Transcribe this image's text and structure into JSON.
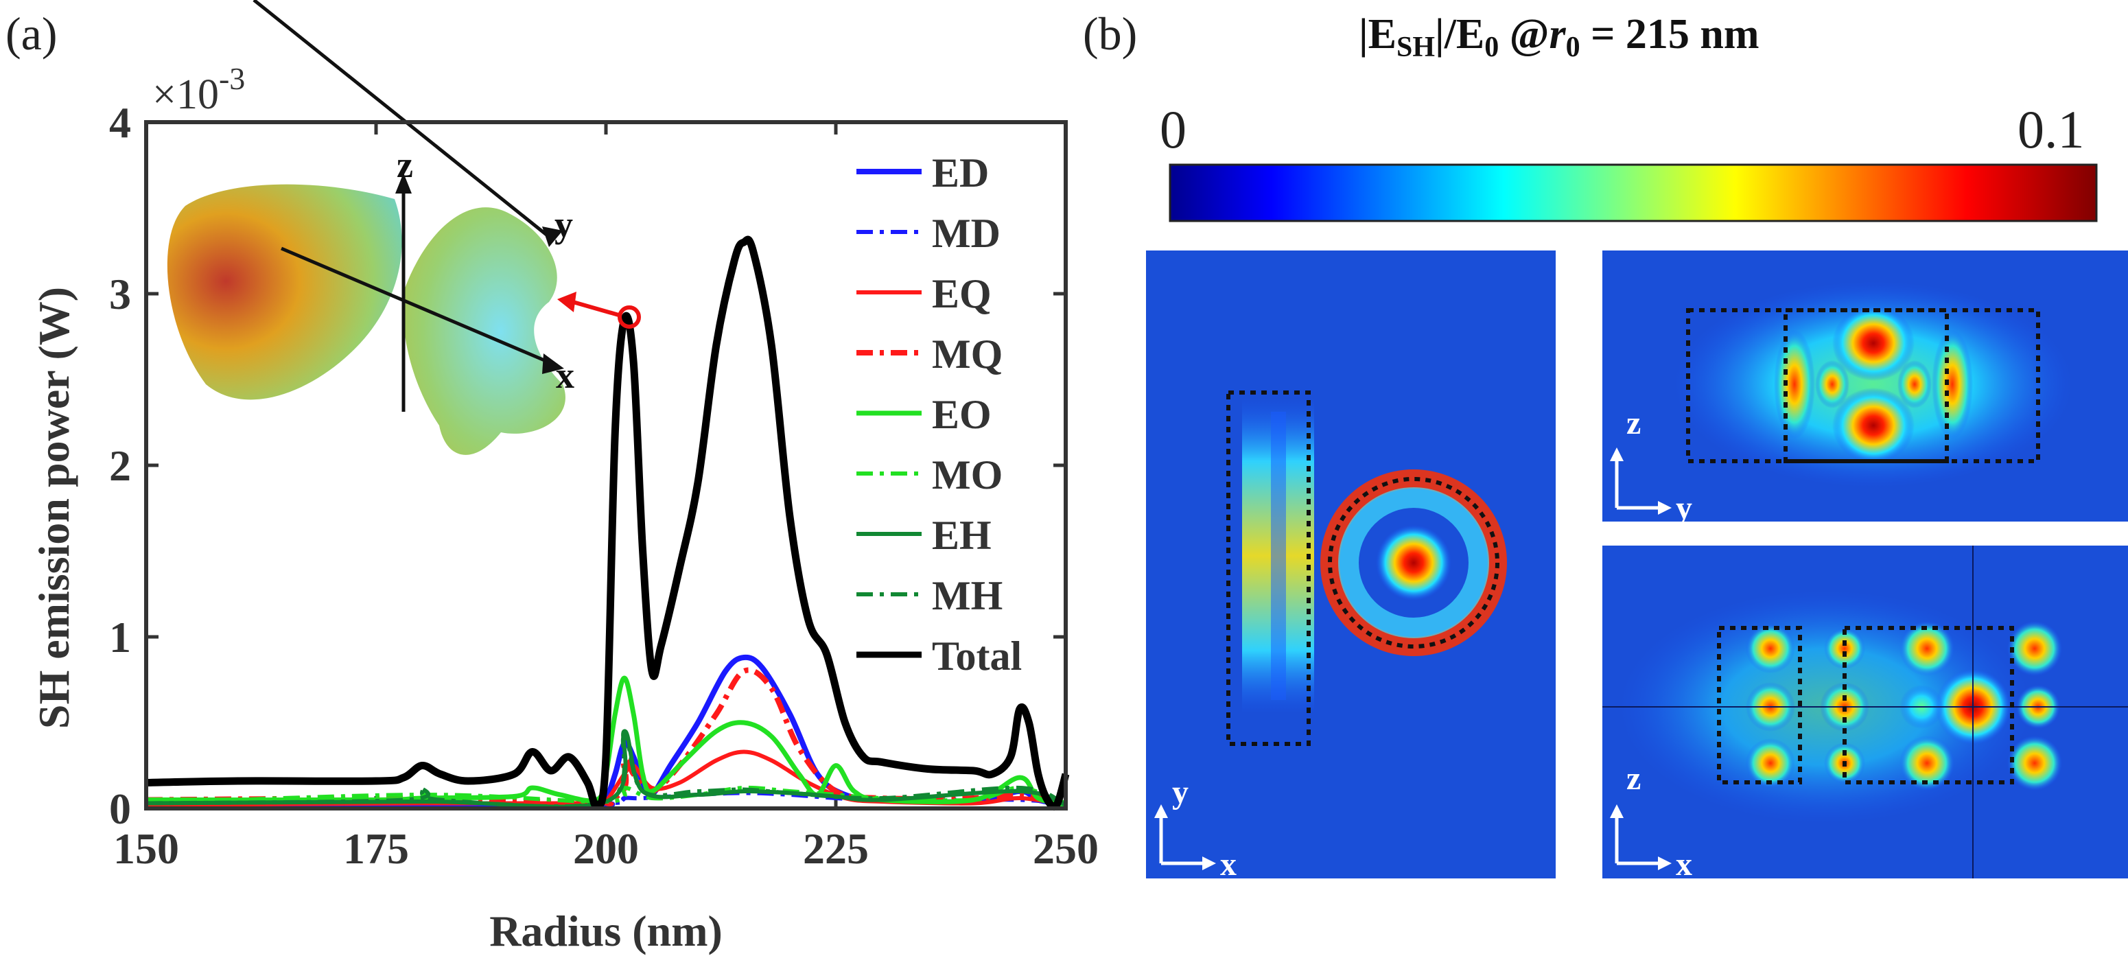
{
  "panel_a_label": "(a)",
  "panel_b_label": "(b)",
  "chart_data": {
    "type": "line",
    "ylabel": "SH emission power (W)",
    "xlabel": "Radius (nm)",
    "xlim": [
      150,
      250
    ],
    "ylim": [
      0,
      4
    ],
    "y_multiplier": "×10",
    "y_multiplier_exp": "-3",
    "xticks": [
      "150",
      "175",
      "200",
      "225",
      "250"
    ],
    "yticks": [
      "0",
      "1",
      "2",
      "3",
      "4"
    ],
    "legend_position": "top-right",
    "inset_axis_labels": [
      "z",
      "y",
      "x"
    ],
    "series": [
      {
        "name": "ED",
        "color": "#1a1aff",
        "dash": "solid",
        "width": 8,
        "x": [
          150,
          180,
          199,
          200,
          201,
          202,
          203,
          204,
          205,
          207,
          210,
          213,
          215,
          217,
          220,
          223,
          226,
          230,
          240,
          245,
          247,
          250
        ],
        "y": [
          0.02,
          0.02,
          0.02,
          0.05,
          0.2,
          0.38,
          0.3,
          0.15,
          0.08,
          0.25,
          0.5,
          0.8,
          0.88,
          0.82,
          0.55,
          0.2,
          0.08,
          0.05,
          0.04,
          0.1,
          0.05,
          0.02
        ]
      },
      {
        "name": "MD",
        "color": "#1a1aff",
        "dash": "dashdot",
        "width": 6,
        "x": [
          150,
          180,
          200,
          202,
          204,
          210,
          215,
          220,
          225,
          230,
          245,
          250
        ],
        "y": [
          0.02,
          0.03,
          0.03,
          0.06,
          0.06,
          0.08,
          0.09,
          0.08,
          0.06,
          0.05,
          0.05,
          0.02
        ]
      },
      {
        "name": "EQ",
        "color": "#ff1a1a",
        "dash": "solid",
        "width": 6,
        "x": [
          150,
          180,
          199,
          200,
          202,
          203,
          205,
          208,
          212,
          215,
          218,
          222,
          226,
          230,
          240,
          245,
          250
        ],
        "y": [
          0.02,
          0.03,
          0.03,
          0.04,
          0.2,
          0.25,
          0.12,
          0.15,
          0.28,
          0.33,
          0.28,
          0.15,
          0.06,
          0.04,
          0.03,
          0.06,
          0.02
        ]
      },
      {
        "name": "MQ",
        "color": "#ff1a1a",
        "dash": "dashdot",
        "width": 8,
        "x": [
          150,
          180,
          200,
          202,
          203,
          205,
          208,
          212,
          215,
          218,
          221,
          225,
          230,
          240,
          245,
          250
        ],
        "y": [
          0.05,
          0.06,
          0.05,
          0.28,
          0.2,
          0.1,
          0.25,
          0.55,
          0.8,
          0.7,
          0.35,
          0.1,
          0.06,
          0.06,
          0.08,
          0.03
        ]
      },
      {
        "name": "EO",
        "color": "#22e022",
        "dash": "solid",
        "width": 7,
        "x": [
          150,
          175,
          180,
          190,
          192,
          195,
          199,
          200,
          201,
          202,
          203,
          204,
          205,
          208,
          212,
          215,
          218,
          221,
          223,
          225,
          227,
          230,
          240,
          245,
          247,
          250
        ],
        "y": [
          0.05,
          0.05,
          0.06,
          0.07,
          0.12,
          0.08,
          0.05,
          0.2,
          0.55,
          0.76,
          0.55,
          0.2,
          0.1,
          0.25,
          0.45,
          0.5,
          0.42,
          0.2,
          0.08,
          0.25,
          0.1,
          0.05,
          0.05,
          0.18,
          0.06,
          0.02
        ]
      },
      {
        "name": "MO",
        "color": "#22e022",
        "dash": "dashdot",
        "width": 6,
        "x": [
          150,
          180,
          200,
          202,
          205,
          210,
          215,
          220,
          225,
          230,
          240,
          245,
          250
        ],
        "y": [
          0.03,
          0.08,
          0.04,
          0.12,
          0.06,
          0.08,
          0.12,
          0.1,
          0.08,
          0.06,
          0.05,
          0.12,
          0.03
        ]
      },
      {
        "name": "EH",
        "color": "#118833",
        "dash": "solid",
        "width": 6,
        "x": [
          150,
          180,
          200,
          202,
          204,
          210,
          215,
          220,
          225,
          230,
          245,
          250
        ],
        "y": [
          0.03,
          0.04,
          0.04,
          0.45,
          0.1,
          0.08,
          0.1,
          0.09,
          0.07,
          0.05,
          0.1,
          0.02
        ]
      },
      {
        "name": "MH",
        "color": "#118833",
        "dash": "dashdot",
        "width": 6,
        "x": [
          150,
          178,
          180,
          182,
          200,
          202,
          204,
          210,
          215,
          220,
          230,
          245,
          250
        ],
        "y": [
          0.03,
          0.05,
          0.12,
          0.05,
          0.04,
          0.42,
          0.1,
          0.1,
          0.11,
          0.09,
          0.06,
          0.12,
          0.02
        ]
      },
      {
        "name": "Total",
        "color": "#000000",
        "dash": "solid",
        "width": 11,
        "x": [
          150,
          160,
          175,
          178,
          180,
          182,
          185,
          190,
          192,
          194,
          196,
          198,
          199,
          200,
          201,
          202,
          203,
          204,
          205,
          206,
          208,
          210,
          212,
          214,
          215,
          216,
          218,
          220,
          222,
          224,
          226,
          228,
          230,
          235,
          240,
          242,
          244,
          245,
          246,
          247,
          248,
          249,
          250
        ],
        "y": [
          0.15,
          0.16,
          0.16,
          0.18,
          0.25,
          0.2,
          0.16,
          0.2,
          0.33,
          0.22,
          0.3,
          0.15,
          0.02,
          0.3,
          2.2,
          2.85,
          2.6,
          1.5,
          0.8,
          0.95,
          1.4,
          1.9,
          2.7,
          3.2,
          3.3,
          3.25,
          2.7,
          1.7,
          1.1,
          0.9,
          0.5,
          0.3,
          0.27,
          0.23,
          0.22,
          0.2,
          0.3,
          0.58,
          0.5,
          0.2,
          0.05,
          0.02,
          0.2
        ]
      }
    ]
  },
  "colorbar": {
    "title_prefix": "|E",
    "title_sub": "SH",
    "title_mid": "|/E",
    "title_sub2": "0",
    "title_at": " @",
    "title_r": "r",
    "title_r_sub": "0",
    "title_suffix": " = 215 nm",
    "min_label": "0",
    "max_label": "0.1"
  },
  "field_maps": [
    {
      "axis_v": "y",
      "axis_h": "x"
    },
    {
      "axis_v": "z",
      "axis_h": "y"
    },
    {
      "axis_v": "z",
      "axis_h": "x"
    }
  ]
}
